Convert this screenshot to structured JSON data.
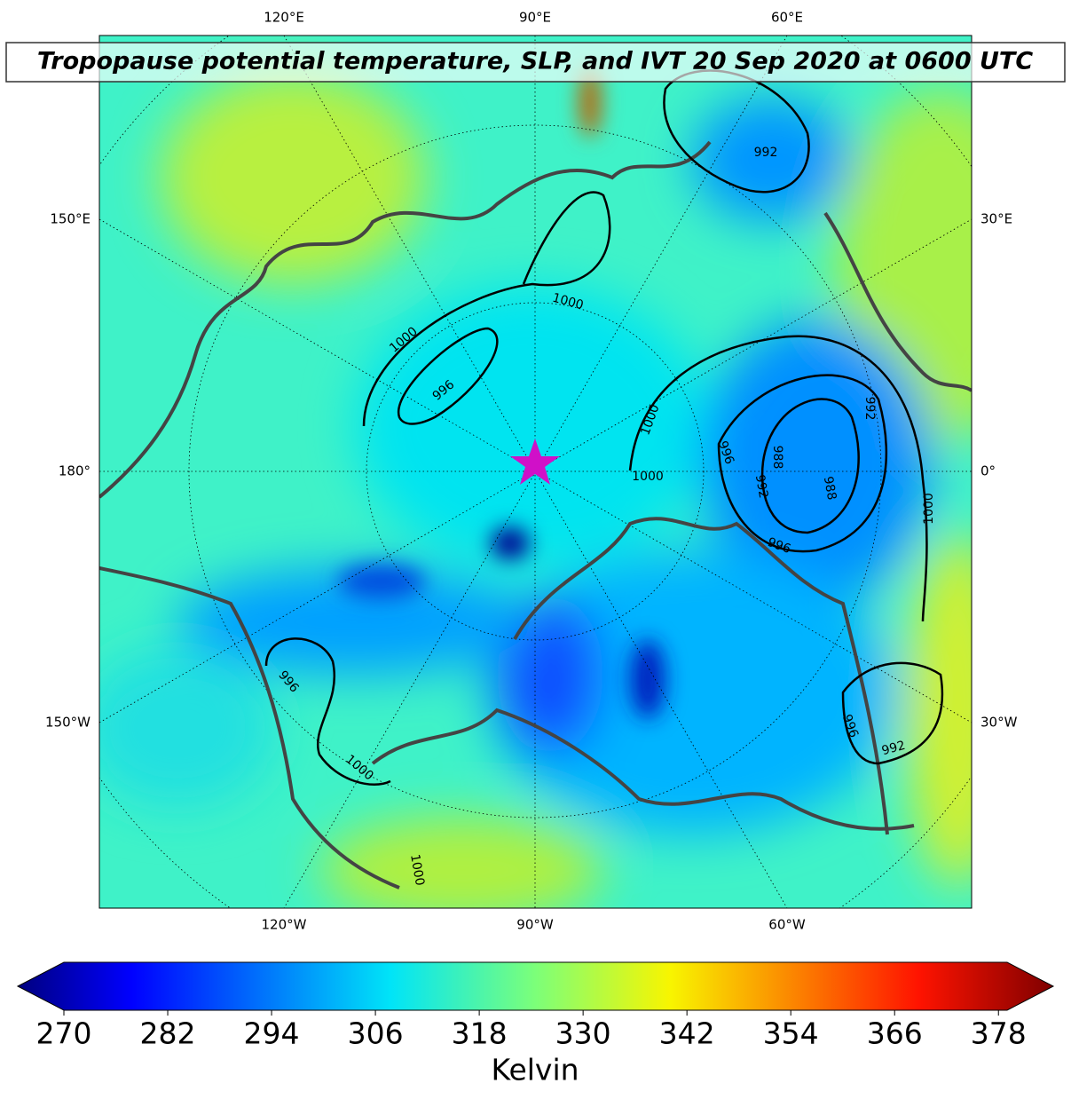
{
  "title": "Tropopause potential temperature, SLP, and IVT 20 Sep 2020 at 0600 UTC",
  "longitude_labels": {
    "top": [
      "120°E",
      "90°E",
      "60°E"
    ],
    "bottom": [
      "120°W",
      "90°W",
      "60°W"
    ],
    "left": [
      "150°E",
      "180°",
      "150°W"
    ],
    "right": [
      "30°E",
      "0°",
      "30°W"
    ]
  },
  "contour_labels": [
    "1000",
    "1000",
    "1000",
    "1000",
    "1000",
    "1000",
    "1000",
    "996",
    "996",
    "996",
    "996",
    "996",
    "992",
    "992",
    "992",
    "992",
    "988",
    "988"
  ],
  "colorbar": {
    "label": "Kelvin",
    "clim": [
      270,
      379
    ],
    "ticks": [
      270,
      282,
      294,
      306,
      318,
      330,
      342,
      354,
      366,
      378
    ],
    "colormap": "jet",
    "extend": "both"
  }
}
